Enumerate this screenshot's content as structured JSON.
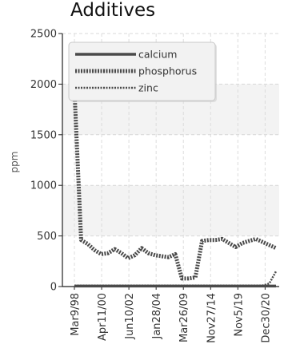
{
  "chart_data": {
    "type": "line",
    "title": "Additives",
    "xlabel": "",
    "ylabel": "ppm",
    "ylim": [
      0,
      2500
    ],
    "yticks": [
      0,
      500,
      1000,
      1500,
      2000,
      2500
    ],
    "grid": true,
    "legend_position": "top-left",
    "x_tick_labels": [
      "Mar9/98",
      "Apr11/00",
      "Jun10/02",
      "Jan28/04",
      "Mar26/09",
      "Nov27/14",
      "Nov5/19",
      "Dec30/20"
    ],
    "x": [
      0,
      1,
      2,
      3,
      4,
      5,
      6,
      7,
      8,
      9,
      10,
      11,
      12,
      13,
      14,
      15,
      16,
      17,
      18,
      19,
      20,
      21,
      22,
      23,
      24,
      25,
      26,
      27,
      28,
      29,
      30
    ],
    "series": [
      {
        "name": "calcium",
        "style": "solid",
        "color": "#4a4a4a",
        "values": [
          5,
          5,
          5,
          5,
          5,
          5,
          5,
          5,
          5,
          5,
          5,
          5,
          5,
          5,
          5,
          5,
          5,
          5,
          5,
          5,
          5,
          5,
          5,
          5,
          5,
          5,
          5,
          5,
          5,
          5,
          5
        ]
      },
      {
        "name": "phosphorus",
        "style": "dotted-thick",
        "color": "#4a4a4a",
        "values": [
          1950,
          460,
          420,
          360,
          320,
          330,
          370,
          330,
          280,
          310,
          380,
          330,
          310,
          300,
          290,
          320,
          80,
          80,
          90,
          450,
          460,
          460,
          470,
          430,
          390,
          430,
          450,
          470,
          440,
          410,
          380
        ]
      },
      {
        "name": "zinc",
        "style": "dotted-thin",
        "color": "#4a4a4a",
        "values": [
          10,
          10,
          10,
          10,
          10,
          10,
          10,
          10,
          10,
          10,
          10,
          10,
          10,
          10,
          10,
          10,
          10,
          10,
          10,
          10,
          10,
          10,
          10,
          10,
          10,
          10,
          10,
          10,
          10,
          30,
          150
        ]
      }
    ]
  }
}
